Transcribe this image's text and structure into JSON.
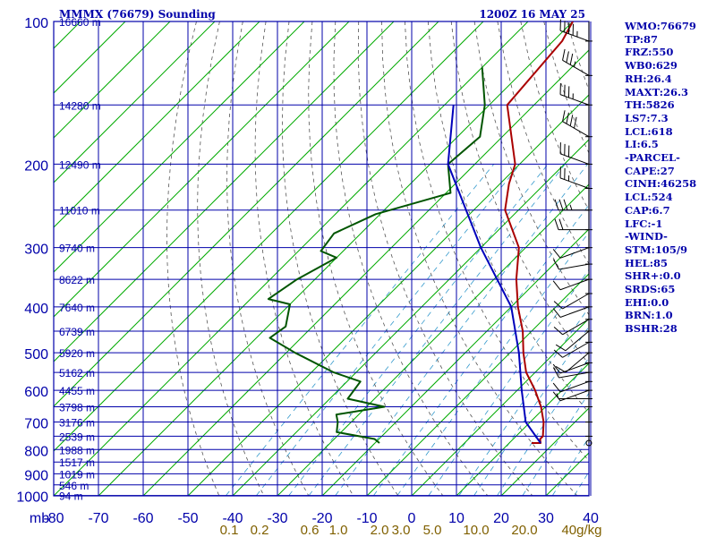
{
  "chart_data": {
    "type": "line",
    "title": "MMMX (76679) Sounding",
    "valid_time": "1200Z 16 MAY 25",
    "pressure_ticks": [
      100,
      200,
      300,
      400,
      500,
      600,
      700,
      800,
      900,
      1000
    ],
    "pressure_axis_label": "mb",
    "temperature_ticks": [
      -80,
      -70,
      -60,
      -50,
      -40,
      -30,
      -20,
      -10,
      0,
      10,
      20,
      30,
      40
    ],
    "mixing_ratio_labels": [
      "0.1",
      "0.2",
      "0.6",
      "1.0",
      "2.0",
      "3.0",
      "5.0",
      "10.0",
      "20.0",
      "40g/kg"
    ],
    "height_labels": [
      {
        "p": 100,
        "label": "16660 m"
      },
      {
        "p": 150,
        "label": "14280 m"
      },
      {
        "p": 200,
        "label": "12490 m"
      },
      {
        "p": 250,
        "label": "11010 m"
      },
      {
        "p": 300,
        "label": "9740 m"
      },
      {
        "p": 350,
        "label": "8622 m"
      },
      {
        "p": 400,
        "label": "7640 m"
      },
      {
        "p": 450,
        "label": "6739 m"
      },
      {
        "p": 500,
        "label": "5920 m"
      },
      {
        "p": 550,
        "label": "5162 m"
      },
      {
        "p": 600,
        "label": "4455 m"
      },
      {
        "p": 650,
        "label": "3798 m"
      },
      {
        "p": 700,
        "label": "3176 m"
      },
      {
        "p": 750,
        "label": "2539 m"
      },
      {
        "p": 800,
        "label": "1988 m"
      },
      {
        "p": 850,
        "label": "1517 m"
      },
      {
        "p": 900,
        "label": "1019 m"
      },
      {
        "p": 950,
        "label": "546 m"
      },
      {
        "p": 1000,
        "label": "94 m"
      }
    ],
    "series": [
      {
        "name": "Temperature",
        "color": "#aa0000",
        "points": [
          {
            "p": 100,
            "t": -70
          },
          {
            "p": 110,
            "t": -68
          },
          {
            "p": 150,
            "t": -66
          },
          {
            "p": 200,
            "t": -51
          },
          {
            "p": 220,
            "t": -48
          },
          {
            "p": 250,
            "t": -43
          },
          {
            "p": 300,
            "t": -31.5
          },
          {
            "p": 350,
            "t": -25
          },
          {
            "p": 400,
            "t": -18.5
          },
          {
            "p": 450,
            "t": -12
          },
          {
            "p": 500,
            "t": -7
          },
          {
            "p": 550,
            "t": -2
          },
          {
            "p": 600,
            "t": 4
          },
          {
            "p": 650,
            "t": 9
          },
          {
            "p": 700,
            "t": 13
          },
          {
            "p": 750,
            "t": 16
          },
          {
            "p": 760,
            "t": 16
          },
          {
            "p": 775,
            "t": 17
          },
          {
            "p": 775,
            "t": 15
          }
        ]
      },
      {
        "name": "Dewpoint",
        "color": "#005500",
        "points": [
          {
            "p": 125,
            "t": -80
          },
          {
            "p": 150,
            "t": -71
          },
          {
            "p": 175,
            "t": -65
          },
          {
            "p": 200,
            "t": -66
          },
          {
            "p": 230,
            "t": -59
          },
          {
            "p": 255,
            "t": -71
          },
          {
            "p": 280,
            "t": -76
          },
          {
            "p": 305,
            "t": -75
          },
          {
            "p": 315,
            "t": -70
          },
          {
            "p": 350,
            "t": -74
          },
          {
            "p": 385,
            "t": -76
          },
          {
            "p": 395,
            "t": -70
          },
          {
            "p": 440,
            "t": -66
          },
          {
            "p": 465,
            "t": -67
          },
          {
            "p": 500,
            "t": -58
          },
          {
            "p": 550,
            "t": -45
          },
          {
            "p": 575,
            "t": -37
          },
          {
            "p": 625,
            "t": -36
          },
          {
            "p": 650,
            "t": -26
          },
          {
            "p": 675,
            "t": -35
          },
          {
            "p": 700,
            "t": -33
          },
          {
            "p": 735,
            "t": -31
          },
          {
            "p": 760,
            "t": -21
          },
          {
            "p": 775,
            "t": -19
          }
        ]
      },
      {
        "name": "Parcel",
        "color": "#0000bb",
        "points": [
          {
            "p": 150,
            "t": -78
          },
          {
            "p": 200,
            "t": -66
          },
          {
            "p": 300,
            "t": -40
          },
          {
            "p": 400,
            "t": -20
          },
          {
            "p": 500,
            "t": -8
          },
          {
            "p": 600,
            "t": 1
          },
          {
            "p": 700,
            "t": 9
          },
          {
            "p": 775,
            "t": 17
          }
        ]
      }
    ],
    "wind_barbs": [
      {
        "p": 110,
        "dir": 290,
        "spd": 45
      },
      {
        "p": 130,
        "dir": 300,
        "spd": 35
      },
      {
        "p": 150,
        "dir": 290,
        "spd": 35
      },
      {
        "p": 175,
        "dir": 300,
        "spd": 40
      },
      {
        "p": 200,
        "dir": 290,
        "spd": 30
      },
      {
        "p": 225,
        "dir": 290,
        "spd": 25
      },
      {
        "p": 250,
        "dir": 270,
        "spd": 35
      },
      {
        "p": 275,
        "dir": 270,
        "spd": 20
      },
      {
        "p": 300,
        "dir": 250,
        "spd": 10
      },
      {
        "p": 325,
        "dir": 260,
        "spd": 10
      },
      {
        "p": 350,
        "dir": 250,
        "spd": 10
      },
      {
        "p": 375,
        "dir": 240,
        "spd": 10
      },
      {
        "p": 400,
        "dir": 250,
        "spd": 10
      },
      {
        "p": 425,
        "dir": 240,
        "spd": 10
      },
      {
        "p": 450,
        "dir": 230,
        "spd": 10
      },
      {
        "p": 475,
        "dir": 240,
        "spd": 10
      },
      {
        "p": 500,
        "dir": 230,
        "spd": 10
      },
      {
        "p": 525,
        "dir": 250,
        "spd": 10
      },
      {
        "p": 550,
        "dir": 260,
        "spd": 10
      },
      {
        "p": 575,
        "dir": 250,
        "spd": 10
      },
      {
        "p": 600,
        "dir": 250,
        "spd": 10
      },
      {
        "p": 625,
        "dir": 270,
        "spd": 5
      },
      {
        "p": 650,
        "dir": 0,
        "spd": 0
      },
      {
        "p": 700,
        "dir": 0,
        "spd": 0
      },
      {
        "p": 750,
        "dir": 0,
        "spd": 0
      }
    ]
  },
  "indices": [
    "WMO:76679",
    "TP:87",
    "FRZ:550",
    "WB0:629",
    "RH:26.4",
    "MAXT:26.3",
    "TH:5826",
    "LS7:7.3",
    "LCL:618",
    "LI:6.5",
    "-PARCEL-",
    "CAPE:27",
    "CINH:46258",
    "LCL:524",
    "CAP:6.7",
    "LFC:-1",
    "-WIND-",
    "STM:105/9",
    "HEL:85",
    "SHR+:0.0",
    "SRDS:65",
    "EHI:0.0",
    "BRN:1.0",
    "BSHR:28"
  ],
  "colors": {
    "frame": "#0000aa",
    "isotherm": "#00aa00",
    "dry_adiabat": "#555555",
    "mixing_ratio": "#3399cc",
    "mixing_label": "#806000"
  }
}
